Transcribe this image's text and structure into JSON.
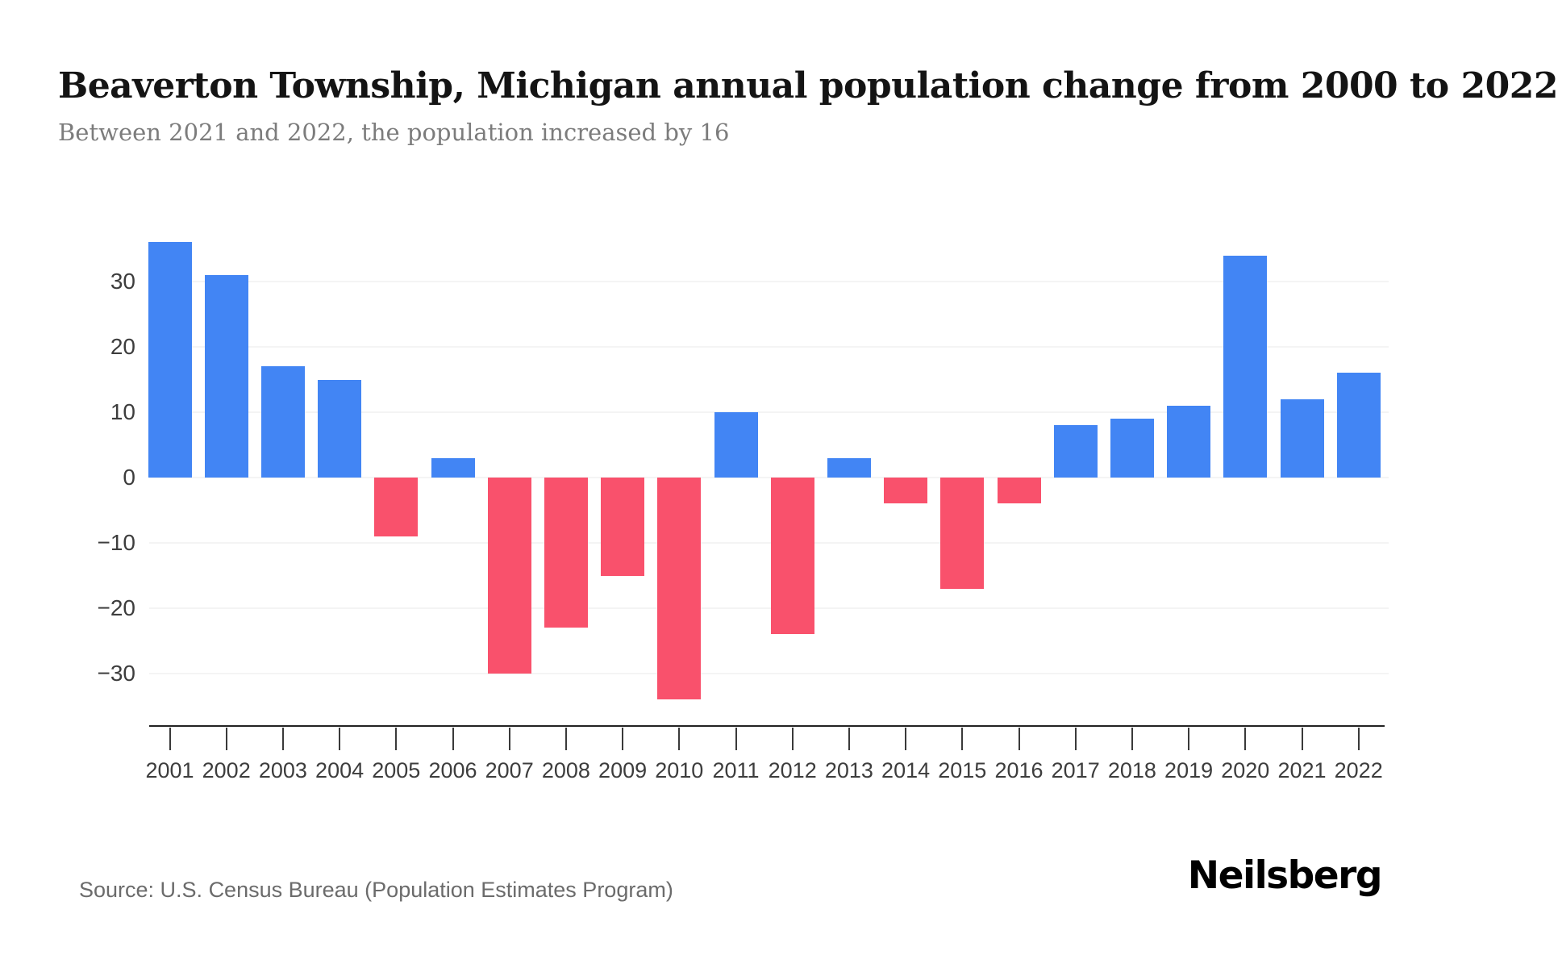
{
  "header": {
    "title": "Beaverton Township, Michigan annual population change from 2000 to 2022",
    "subtitle": "Between 2021 and 2022, the population increased by 16"
  },
  "chart_data": {
    "type": "bar",
    "title": "Beaverton Township, Michigan annual population change from 2000 to 2022",
    "subtitle": "Between 2021 and 2022, the population increased by 16",
    "categories": [
      "2001",
      "2002",
      "2003",
      "2004",
      "2005",
      "2006",
      "2007",
      "2008",
      "2009",
      "2010",
      "2011",
      "2012",
      "2013",
      "2014",
      "2015",
      "2016",
      "2017",
      "2018",
      "2019",
      "2020",
      "2021",
      "2022"
    ],
    "values": [
      36,
      31,
      17,
      15,
      -9,
      3,
      -30,
      -23,
      -15,
      -34,
      10,
      -24,
      3,
      -4,
      -17,
      -4,
      8,
      9,
      11,
      34,
      12,
      16
    ],
    "series_name": "Annual population change",
    "xlabel": "",
    "ylabel": "",
    "ylim": [
      -40,
      40
    ],
    "y_ticks": [
      30,
      20,
      10,
      0,
      -10,
      -20,
      -30
    ],
    "grid": true,
    "legend": "none",
    "positive_color": "#4285F4",
    "negative_color": "#F9516C"
  },
  "footer": {
    "source": "Source: U.S. Census Bureau (Population Estimates Program)",
    "brand": "Neilsberg"
  }
}
